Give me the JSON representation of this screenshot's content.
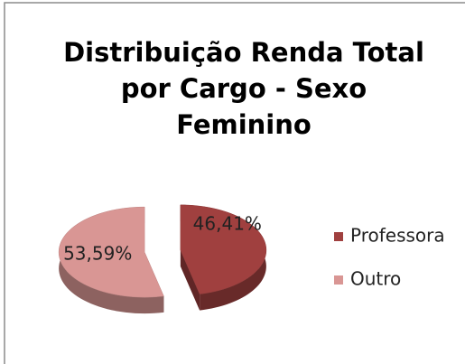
{
  "chart_data": {
    "type": "pie",
    "title": "Distribuição Renda Total por Cargo - Sexo Feminino",
    "categories": [
      "Professora",
      "Outro"
    ],
    "values": [
      46.41,
      53.59
    ],
    "value_labels": [
      "46,41%",
      "53,59%"
    ],
    "colors": [
      "#a0403f",
      "#d99694"
    ],
    "legend": "right"
  }
}
